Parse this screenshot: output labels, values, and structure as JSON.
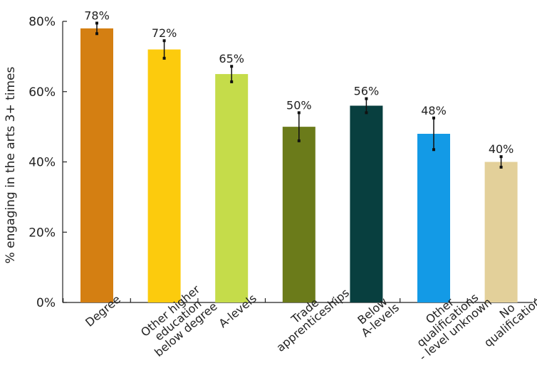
{
  "chart_data": {
    "type": "bar",
    "categories": [
      [
        "Degree"
      ],
      [
        "Other higher",
        "education",
        "below degree"
      ],
      [
        "A-levels"
      ],
      [
        "Trade",
        "apprenticeships"
      ],
      [
        "Below",
        "A-levels"
      ],
      [
        "Other",
        "qualifications",
        "- level unknown"
      ],
      [
        "No",
        "qualifications"
      ]
    ],
    "values": [
      78,
      72,
      65,
      50,
      56,
      48,
      40
    ],
    "value_labels": [
      "78%",
      "72%",
      "65%",
      "50%",
      "56%",
      "48%",
      "40%"
    ],
    "error_bars": [
      [
        76.5,
        79.5
      ],
      [
        69.5,
        74.5
      ],
      [
        62.8,
        67.2
      ],
      [
        46,
        54
      ],
      [
        54,
        58
      ],
      [
        43.5,
        52.5
      ],
      [
        38.5,
        41.5
      ]
    ],
    "colors": [
      "#d47f12",
      "#fccb0d",
      "#c5dc4a",
      "#6b7b1a",
      "#083f3f",
      "#139ae6",
      "#e3d09a"
    ],
    "ylabel": "% engaging in the arts 3+ times",
    "xlabel": "",
    "ylim": [
      0,
      80
    ],
    "yticks": [
      0,
      20,
      40,
      60,
      80
    ],
    "ytick_labels": [
      "0%",
      "20%",
      "40%",
      "60%",
      "80%"
    ],
    "grid": false,
    "legend": "none"
  }
}
